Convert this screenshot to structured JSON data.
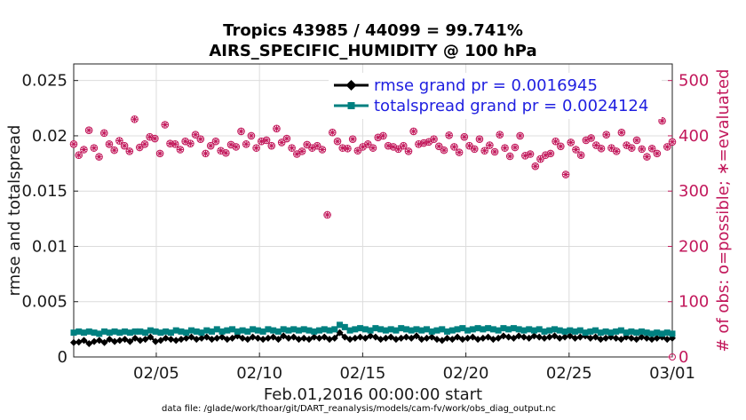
{
  "chart_data": {
    "type": "line",
    "title": "Tropics 43985 / 44099 = 99.741%",
    "subtitle": "AIRS_SPECIFIC_HUMIDITY @ 100 hPa",
    "xlabel": "Feb.01,2016 00:00:00 start",
    "ylabel_left": "rmse and totalspread",
    "ylabel_right": "# of obs: o=possible; ∗=evaluated",
    "footnote": "data file: /glade/work/thoar/git/DART_reanalysis/models/cam-fv/work/obs_diag_output.nc",
    "x_range": [
      1,
      30
    ],
    "ylim_left": [
      0,
      0.0265
    ],
    "ylim_right": [
      0,
      530
    ],
    "x_ticks": [
      {
        "x": 5,
        "label": "02/05"
      },
      {
        "x": 10,
        "label": "02/10"
      },
      {
        "x": 15,
        "label": "02/15"
      },
      {
        "x": 20,
        "label": "02/20"
      },
      {
        "x": 25,
        "label": "02/25"
      },
      {
        "x": 30,
        "label": "03/01"
      }
    ],
    "y_ticks_left": [
      "0",
      "0.005",
      "0.01",
      "0.015",
      "0.02",
      "0.025"
    ],
    "y_ticks_right": [
      "0",
      "100",
      "200",
      "300",
      "400",
      "500"
    ],
    "legend": [
      {
        "label": "rmse grand pr = 0.0016945",
        "color": "#000000",
        "marker": "diamond"
      },
      {
        "label": "totalspread grand pr = 0.0024124",
        "color": "#008080",
        "marker": "square"
      }
    ],
    "series": [
      {
        "name": "rmse",
        "axis": "left",
        "color": "#000000",
        "values": [
          0.0013,
          0.00135,
          0.0015,
          0.0012,
          0.0014,
          0.0015,
          0.0013,
          0.0016,
          0.0014,
          0.0015,
          0.0016,
          0.0014,
          0.0017,
          0.0015,
          0.0016,
          0.0018,
          0.0014,
          0.0015,
          0.0017,
          0.0016,
          0.0015,
          0.0016,
          0.0017,
          0.0018,
          0.0016,
          0.0017,
          0.0018,
          0.0016,
          0.0017,
          0.0018,
          0.0016,
          0.0017,
          0.0019,
          0.0017,
          0.0016,
          0.0018,
          0.0017,
          0.0016,
          0.0017,
          0.0018,
          0.0016,
          0.0019,
          0.0017,
          0.0018,
          0.0016,
          0.0017,
          0.0016,
          0.0018,
          0.0017,
          0.0018,
          0.0016,
          0.0017,
          0.0022,
          0.0018,
          0.0016,
          0.0017,
          0.0018,
          0.0017,
          0.0019,
          0.0018,
          0.0016,
          0.0017,
          0.0018,
          0.0016,
          0.0017,
          0.0018,
          0.0017,
          0.0019,
          0.0016,
          0.0017,
          0.0018,
          0.0016,
          0.0015,
          0.0017,
          0.0016,
          0.0018,
          0.0016,
          0.0017,
          0.0018,
          0.0016,
          0.0017,
          0.0018,
          0.0016,
          0.0017,
          0.0019,
          0.0018,
          0.0017,
          0.0019,
          0.0018,
          0.0017,
          0.0019,
          0.0018,
          0.0017,
          0.0018,
          0.0019,
          0.0017,
          0.0018,
          0.0019,
          0.0017,
          0.0018,
          0.0019,
          0.0017,
          0.0018,
          0.0016,
          0.0017,
          0.0018,
          0.0017,
          0.0016,
          0.0018,
          0.0017,
          0.0016,
          0.0018,
          0.0017,
          0.0016,
          0.0017,
          0.0018,
          0.0016,
          0.0017
        ]
      },
      {
        "name": "totalspread",
        "axis": "left",
        "color": "#008080",
        "values": [
          0.0022,
          0.0023,
          0.0022,
          0.0023,
          0.0022,
          0.0021,
          0.0023,
          0.0022,
          0.0023,
          0.0022,
          0.0023,
          0.0022,
          0.0023,
          0.0023,
          0.0022,
          0.0024,
          0.0023,
          0.0022,
          0.0023,
          0.0022,
          0.0024,
          0.0023,
          0.0022,
          0.0024,
          0.0023,
          0.0022,
          0.0024,
          0.0023,
          0.0025,
          0.0023,
          0.0024,
          0.0025,
          0.0023,
          0.0024,
          0.0023,
          0.0025,
          0.0024,
          0.0023,
          0.0025,
          0.0024,
          0.0023,
          0.0025,
          0.0024,
          0.0025,
          0.0024,
          0.0025,
          0.0024,
          0.0023,
          0.0024,
          0.0025,
          0.0024,
          0.0025,
          0.0029,
          0.0027,
          0.0024,
          0.0025,
          0.0026,
          0.0025,
          0.0024,
          0.0026,
          0.0025,
          0.0024,
          0.0025,
          0.0024,
          0.0026,
          0.0025,
          0.0024,
          0.0025,
          0.0024,
          0.0025,
          0.0023,
          0.0024,
          0.0025,
          0.0023,
          0.0024,
          0.0025,
          0.0026,
          0.0024,
          0.0025,
          0.0026,
          0.0025,
          0.0026,
          0.0025,
          0.0024,
          0.0026,
          0.0025,
          0.0026,
          0.0025,
          0.0024,
          0.0025,
          0.0024,
          0.0025,
          0.0023,
          0.0024,
          0.0025,
          0.0024,
          0.0023,
          0.0024,
          0.0023,
          0.0024,
          0.0022,
          0.0023,
          0.0024,
          0.0022,
          0.0023,
          0.0022,
          0.0023,
          0.0024,
          0.0022,
          0.0023,
          0.0022,
          0.0023,
          0.0022,
          0.0021,
          0.0022,
          0.0021,
          0.0022,
          0.0021
        ]
      },
      {
        "name": "obs_possible",
        "axis": "right",
        "color": "#c2185b",
        "marker": "o",
        "values": [
          385,
          365,
          375,
          410,
          378,
          362,
          405,
          385,
          374,
          391,
          382,
          372,
          430,
          379,
          385,
          398,
          395,
          368,
          420,
          386,
          385,
          375,
          390,
          386,
          402,
          394,
          368,
          382,
          390,
          373,
          369,
          384,
          380,
          408,
          385,
          400,
          378,
          390,
          392,
          382,
          413,
          388,
          395,
          378,
          367,
          372,
          384,
          378,
          382,
          375,
          257,
          406,
          390,
          378,
          377,
          394,
          373,
          380,
          385,
          378,
          397,
          400,
          382,
          380,
          376,
          382,
          372,
          408,
          385,
          387,
          389,
          394,
          381,
          374,
          401,
          380,
          370,
          398,
          382,
          376,
          394,
          373,
          383,
          371,
          402,
          378,
          363,
          379,
          400,
          364,
          367,
          345,
          358,
          365,
          368,
          390,
          381,
          330,
          388,
          375,
          365,
          392,
          396,
          383,
          377,
          402,
          378,
          372,
          406,
          383,
          378,
          392,
          376,
          362,
          377,
          368,
          427,
          380,
          389
        ]
      },
      {
        "name": "obs_evaluated",
        "axis": "right",
        "color": "#c2185b",
        "marker": "*",
        "values": [
          385,
          365,
          375,
          410,
          378,
          362,
          405,
          385,
          374,
          391,
          382,
          372,
          430,
          379,
          385,
          398,
          395,
          368,
          420,
          386,
          385,
          375,
          390,
          386,
          402,
          394,
          368,
          382,
          390,
          373,
          369,
          384,
          380,
          408,
          385,
          400,
          378,
          390,
          392,
          382,
          413,
          388,
          395,
          378,
          367,
          372,
          384,
          378,
          382,
          375,
          257,
          406,
          390,
          378,
          377,
          394,
          373,
          380,
          385,
          378,
          397,
          400,
          382,
          380,
          376,
          382,
          372,
          408,
          385,
          387,
          389,
          394,
          381,
          374,
          401,
          380,
          370,
          398,
          382,
          376,
          394,
          373,
          383,
          371,
          402,
          378,
          363,
          379,
          400,
          364,
          367,
          345,
          358,
          365,
          368,
          390,
          381,
          330,
          388,
          375,
          365,
          392,
          396,
          383,
          377,
          402,
          378,
          372,
          406,
          383,
          378,
          392,
          376,
          362,
          377,
          368,
          427,
          380,
          389
        ]
      }
    ]
  }
}
